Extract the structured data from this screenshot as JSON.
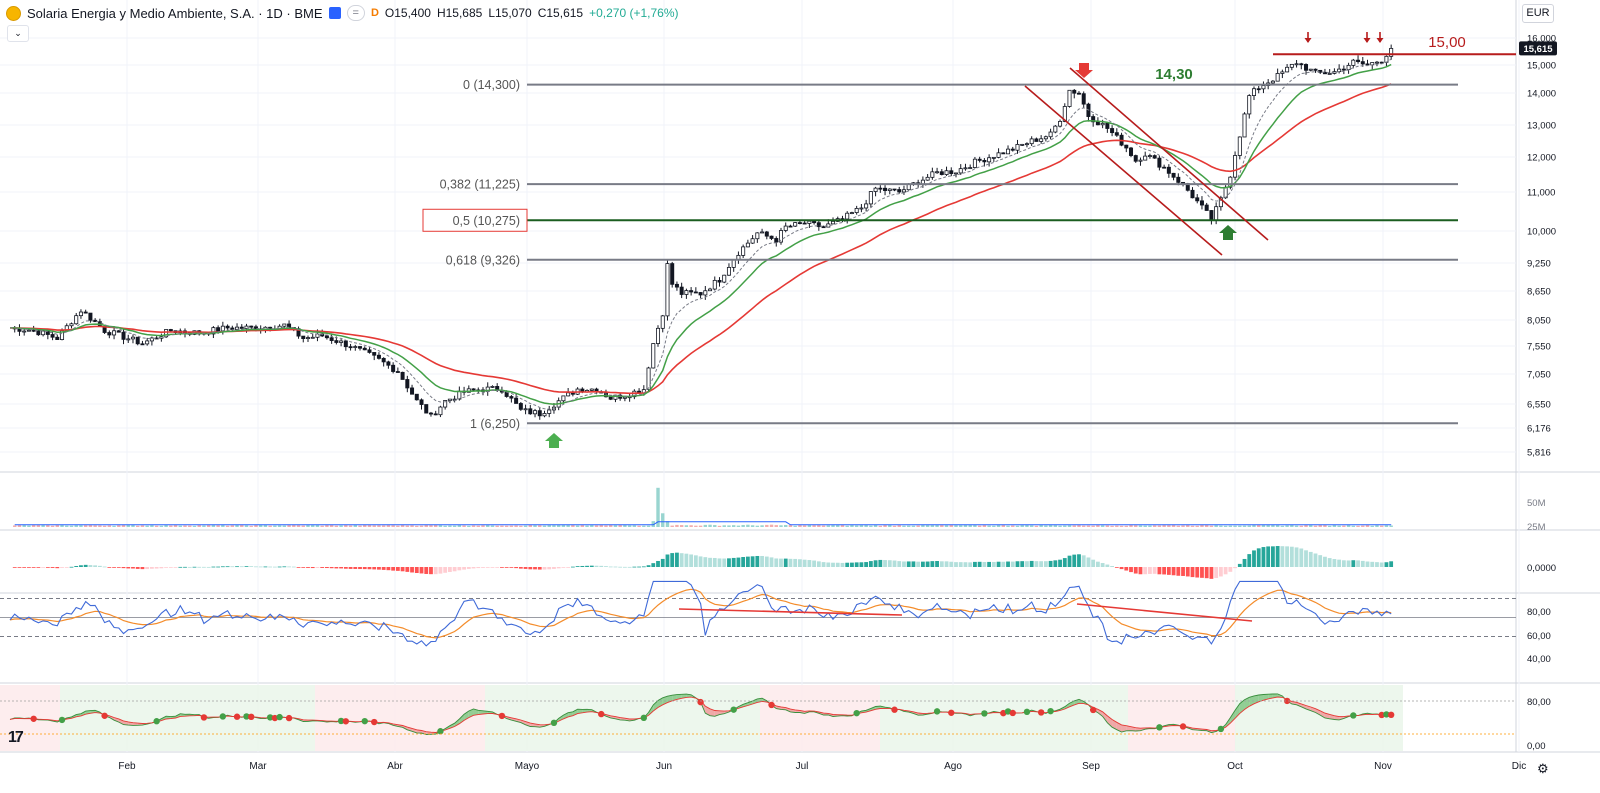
{
  "header": {
    "title": "Solaria Energia y Medio Ambiente, S.A. · 1D · BME",
    "badge": "=",
    "d_label": "D",
    "open": "O15,400",
    "high": "H15,685",
    "low": "L15,070",
    "close": "C15,615",
    "change": "+0,270 (+1,76%)",
    "collapse_icon": "chevron-down-icon"
  },
  "currency": "EUR",
  "settings_icon": "gear-icon",
  "colors": {
    "up": "#ffffff",
    "down": "#131722",
    "candle_border": "#131722",
    "ma_green": "#43a047",
    "ma_red": "#e53935",
    "ma_dash": "#787b86",
    "fib_line": "#787b86",
    "fib_mid": "#1b5e20",
    "accent_red": "#b71c1c",
    "accent_green": "#2e7d32",
    "rsi": "#3f6ad8",
    "rsi_ma": "#f48c2b",
    "hist_up_strong": "#26a69a",
    "hist_up_weak": "#b2dfdb",
    "hist_down_strong": "#ff5252",
    "hist_down_weak": "#ffcdd2"
  },
  "chart_data": {
    "type": "candlestick",
    "months": [
      "Feb",
      "Mar",
      "Abr",
      "Mayo",
      "Jun",
      "Jul",
      "Ago",
      "Sep",
      "Oct",
      "Nov",
      "Dic"
    ],
    "y_ticks": [
      "16,000",
      "15,000",
      "14,000",
      "13,000",
      "12,000",
      "11,000",
      "10,000",
      "9,250",
      "8,650",
      "8,050",
      "7,550",
      "7,050",
      "6,550",
      "6,176",
      "5,816"
    ],
    "last_price_label": "15,615",
    "fib_levels": [
      {
        "label": "0 (14,300)",
        "value": 14.3
      },
      {
        "label": "0,382 (11,225)",
        "value": 11.225
      },
      {
        "label": "0,5 (10,275)",
        "value": 10.275,
        "boxed": true
      },
      {
        "label": "0,618 (9,326)",
        "value": 9.326
      },
      {
        "label": "1 (6,250)",
        "value": 6.25
      }
    ],
    "annotations": {
      "level_15": "15,00",
      "level_1430": "14,30"
    },
    "price_anchors": [
      [
        0,
        7.9
      ],
      [
        5,
        7.85
      ],
      [
        10,
        7.7
      ],
      [
        15,
        8.25
      ],
      [
        20,
        7.85
      ],
      [
        28,
        7.6
      ],
      [
        34,
        7.85
      ],
      [
        40,
        7.8
      ],
      [
        46,
        7.9
      ],
      [
        52,
        7.9
      ],
      [
        58,
        7.95
      ],
      [
        62,
        7.7
      ],
      [
        66,
        7.75
      ],
      [
        72,
        7.55
      ],
      [
        78,
        7.3
      ],
      [
        82,
        7.1
      ],
      [
        86,
        6.6
      ],
      [
        89,
        6.35
      ],
      [
        92,
        6.6
      ],
      [
        96,
        6.75
      ],
      [
        100,
        6.8
      ],
      [
        104,
        6.8
      ],
      [
        108,
        6.45
      ],
      [
        112,
        6.4
      ],
      [
        116,
        6.6
      ],
      [
        120,
        6.8
      ],
      [
        124,
        6.8
      ],
      [
        127,
        6.65
      ],
      [
        130,
        6.7
      ],
      [
        134,
        6.8
      ],
      [
        136,
        7.6
      ],
      [
        138,
        8.2
      ],
      [
        139,
        9.2
      ],
      [
        140,
        8.8
      ],
      [
        142,
        8.6
      ],
      [
        146,
        8.6
      ],
      [
        150,
        8.9
      ],
      [
        154,
        9.5
      ],
      [
        158,
        9.95
      ],
      [
        162,
        9.8
      ],
      [
        164,
        10.1
      ],
      [
        168,
        10.2
      ],
      [
        172,
        10.1
      ],
      [
        176,
        10.3
      ],
      [
        180,
        10.6
      ],
      [
        183,
        11.1
      ],
      [
        188,
        11.0
      ],
      [
        192,
        11.3
      ],
      [
        196,
        11.55
      ],
      [
        200,
        11.6
      ],
      [
        204,
        11.85
      ],
      [
        208,
        12.05
      ],
      [
        212,
        12.25
      ],
      [
        216,
        12.5
      ],
      [
        220,
        12.7
      ],
      [
        222,
        13.2
      ],
      [
        224,
        14.1
      ],
      [
        226,
        14.0
      ],
      [
        228,
        13.3
      ],
      [
        232,
        12.9
      ],
      [
        234,
        12.6
      ],
      [
        236,
        12.3
      ],
      [
        238,
        11.9
      ],
      [
        240,
        12.1
      ],
      [
        244,
        11.7
      ],
      [
        248,
        11.2
      ],
      [
        252,
        10.6
      ],
      [
        254,
        10.3
      ],
      [
        256,
        10.8
      ],
      [
        258,
        11.5
      ],
      [
        260,
        12.7
      ],
      [
        262,
        13.9
      ],
      [
        264,
        14.2
      ],
      [
        268,
        14.6
      ],
      [
        272,
        15.1
      ],
      [
        276,
        14.7
      ],
      [
        280,
        14.75
      ],
      [
        284,
        15.1
      ],
      [
        287,
        15.0
      ],
      [
        290,
        15.2
      ],
      [
        292,
        15.615
      ]
    ],
    "overbought": 70,
    "oversold": 30,
    "rsi_ticks": [
      "80,00",
      "60,00",
      "40,00"
    ],
    "osc_ticks": [
      "80,00",
      "0,00"
    ],
    "vol_ticks": [
      "50M",
      "25M"
    ],
    "macd_ticks": [
      "0,0000"
    ]
  }
}
